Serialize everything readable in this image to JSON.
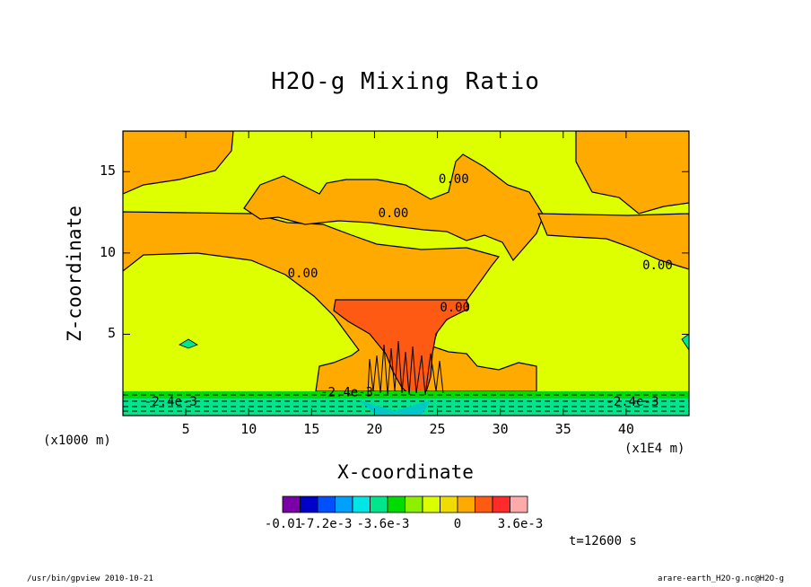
{
  "chart_data": {
    "type": "heatmap",
    "title": "H2O-g Mixing Ratio",
    "xlabel": "X-coordinate",
    "ylabel": "Z-coordinate",
    "x_unit_label": "(x1000 m)",
    "x_multiplier_label": "(x1E4 m)",
    "xlim": [
      0,
      45
    ],
    "ylim": [
      0,
      17.5
    ],
    "x_ticks": [
      "5",
      "10",
      "15",
      "20",
      "25",
      "30",
      "35",
      "40"
    ],
    "y_ticks": [
      "5",
      "10",
      "15"
    ],
    "x_tick_values": [
      5,
      10,
      15,
      20,
      25,
      30,
      35,
      40
    ],
    "y_tick_values": [
      5,
      10,
      15
    ],
    "contour_labels": [
      {
        "text": "0.00",
        "x": 21.5,
        "y": 12.2
      },
      {
        "text": "0.00",
        "x": 26.3,
        "y": 14.3
      },
      {
        "text": "0.00",
        "x": 14.3,
        "y": 8.5
      },
      {
        "text": "0.00",
        "x": 26.4,
        "y": 6.4
      },
      {
        "text": "0.00",
        "x": 42.5,
        "y": 9.0
      },
      {
        "text": "-2.4e-3",
        "x": 3.8,
        "y": 0.6
      },
      {
        "text": "-2.4e-3",
        "x": 17.8,
        "y": 1.2
      },
      {
        "text": "-2.4e-3",
        "x": 40.5,
        "y": 0.6
      }
    ],
    "colorbar": {
      "labels": [
        "-0.01",
        "-7.2e-3",
        "-3.6e-3",
        "0",
        "3.6e-3"
      ],
      "colors": [
        "#7a00a8",
        "#0000c8",
        "#0050ff",
        "#00a0ff",
        "#00e6e6",
        "#00e68c",
        "#00dc00",
        "#8cf000",
        "#dcff00",
        "#f0dc00",
        "#ffaa00",
        "#ff5a14",
        "#ff2a2a",
        "#ffaaaa"
      ]
    },
    "time_label": "t=12600 s"
  },
  "footer": {
    "left": "/usr/bin/gpview  2010-10-21",
    "right": "arare-earth_H2O-g.nc@H2O-g"
  },
  "colors": {
    "background_field": "#ddff00",
    "positive_region": "#ffaa00",
    "core_region": "#ff5a14",
    "near_surface": "#00e68c"
  }
}
